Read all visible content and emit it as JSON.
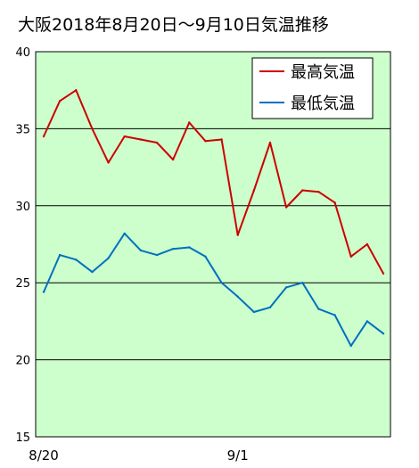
{
  "chart_data": {
    "type": "line",
    "title": "大阪2018年8月20日～9月10日気温推移",
    "x": [
      "8/20",
      "8/21",
      "8/22",
      "8/23",
      "8/24",
      "8/25",
      "8/26",
      "8/27",
      "8/28",
      "8/29",
      "8/30",
      "8/31",
      "9/1",
      "9/2",
      "9/3",
      "9/4",
      "9/5",
      "9/6",
      "9/7",
      "9/8",
      "9/9",
      "9/10"
    ],
    "x_tick_labels": [
      "8/20",
      "9/1"
    ],
    "x_tick_positions": [
      "8/20",
      "9/1"
    ],
    "ylim": [
      15,
      40
    ],
    "y_ticks": [
      15,
      20,
      25,
      30,
      35,
      40
    ],
    "grid": true,
    "plot_background": "#ccffcc",
    "legend_position": "top-right",
    "series": [
      {
        "name": "最高気温",
        "color": "#cc0000",
        "values": [
          34.5,
          36.8,
          37.5,
          35.0,
          32.8,
          34.5,
          34.3,
          34.1,
          33.0,
          35.4,
          34.2,
          34.3,
          28.1,
          31.0,
          34.1,
          29.9,
          31.0,
          30.9,
          30.2,
          26.7,
          27.5,
          25.6
        ]
      },
      {
        "name": "最低気温",
        "color": "#0070c0",
        "values": [
          24.4,
          26.8,
          26.5,
          25.7,
          26.6,
          28.2,
          27.1,
          26.8,
          27.2,
          27.3,
          26.7,
          25.0,
          24.1,
          23.1,
          23.4,
          24.7,
          25.0,
          23.3,
          22.9,
          20.9,
          22.5,
          21.7
        ]
      }
    ]
  }
}
